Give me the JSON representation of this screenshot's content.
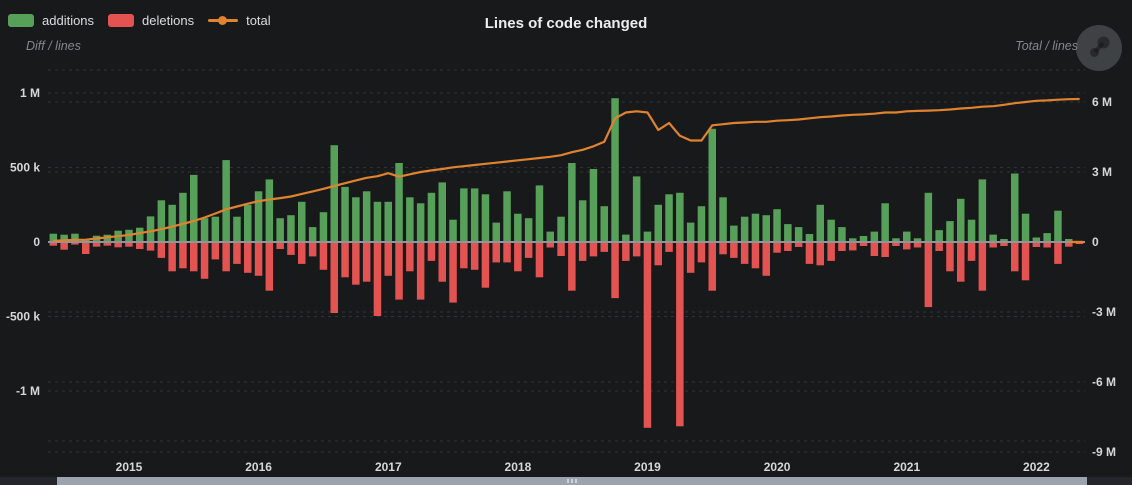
{
  "header": {
    "title": "Lines of code changed",
    "legend": [
      {
        "label": "additions",
        "color": "#57a05a",
        "marker": "box"
      },
      {
        "label": "deletions",
        "color": "#e25352",
        "marker": "box"
      },
      {
        "label": "total",
        "color": "#e0832f",
        "marker": "line-dot"
      }
    ]
  },
  "axes": {
    "left_name": "Diff / lines",
    "right_name": "Total / lines"
  },
  "chart_data": {
    "type": "bar",
    "subtype": "monthly additions/deletions bars with cumulative total line",
    "title": "Lines of code changed",
    "xlabel": "",
    "ylabel_left": "Diff / lines",
    "ylabel_right": "Total / lines",
    "grid": "faint dashed horizontal gridlines",
    "legend_position": "top-left",
    "x_start_month": "2014-06",
    "x_end_month": "2022-05",
    "year_ticks": [
      {
        "label": "2015",
        "index": 7
      },
      {
        "label": "2016",
        "index": 19
      },
      {
        "label": "2017",
        "index": 31
      },
      {
        "label": "2018",
        "index": 43
      },
      {
        "label": "2019",
        "index": 55
      },
      {
        "label": "2020",
        "index": 67
      },
      {
        "label": "2021",
        "index": 79
      },
      {
        "label": "2022",
        "index": 91
      }
    ],
    "left_axis": {
      "name": "Diff / lines",
      "range_k": [
        -1410,
        1160
      ],
      "ticks": [
        {
          "label": "1 M",
          "value_k": 1000
        },
        {
          "label": "500 k",
          "value_k": 500
        },
        {
          "label": "0",
          "value_k": 0
        },
        {
          "label": "-500 k",
          "value_k": -500
        },
        {
          "label": "-1 M",
          "value_k": -1000
        }
      ]
    },
    "right_axis": {
      "name": "Total / lines",
      "range_m": [
        -9.4,
        7.4
      ],
      "ticks": [
        {
          "label": "6 M",
          "value_m": 6
        },
        {
          "label": "3 M",
          "value_m": 3
        },
        {
          "label": "0",
          "value_m": 0
        },
        {
          "label": "-3 M",
          "value_m": -3
        },
        {
          "label": "-6 M",
          "value_m": -6
        },
        {
          "label": "-9 M",
          "value_m": -9
        }
      ]
    },
    "series": [
      {
        "name": "additions",
        "type": "bar",
        "axis": "left",
        "direction": "up",
        "color": "#57a05a",
        "unit": "thousand lines",
        "values": [
          56,
          49,
          56,
          16,
          42,
          49,
          76,
          82,
          96,
          172,
          280,
          250,
          330,
          450,
          160,
          170,
          550,
          170,
          250,
          340,
          420,
          160,
          180,
          270,
          100,
          200,
          650,
          370,
          300,
          340,
          270,
          270,
          530,
          300,
          260,
          330,
          400,
          150,
          360,
          360,
          320,
          130,
          340,
          190,
          160,
          380,
          70,
          170,
          530,
          280,
          490,
          240,
          965,
          50,
          440,
          70,
          250,
          320,
          330,
          130,
          240,
          760,
          300,
          110,
          170,
          190,
          180,
          220,
          120,
          100,
          54,
          250,
          150,
          100,
          25,
          40,
          70,
          260,
          25,
          70,
          25,
          330,
          80,
          140,
          290,
          150,
          420,
          50,
          20,
          460,
          190,
          30,
          60,
          210,
          20,
          5
        ]
      },
      {
        "name": "deletions",
        "type": "bar",
        "axis": "left",
        "direction": "down",
        "color": "#e25352",
        "unit": "thousand lines",
        "values": [
          18,
          45,
          11,
          74,
          25,
          18,
          29,
          25,
          40,
          51,
          100,
          190,
          170,
          190,
          240,
          110,
          190,
          140,
          200,
          220,
          320,
          40,
          80,
          140,
          90,
          180,
          470,
          230,
          280,
          260,
          490,
          220,
          380,
          190,
          380,
          120,
          260,
          400,
          170,
          180,
          300,
          130,
          130,
          190,
          100,
          230,
          30,
          87,
          320,
          120,
          90,
          60,
          370,
          120,
          90,
          1240,
          150,
          60,
          1230,
          200,
          130,
          320,
          76,
          100,
          140,
          170,
          220,
          65,
          54,
          27,
          140,
          150,
          120,
          54,
          50,
          20,
          87,
          94,
          20,
          43,
          30,
          430,
          54,
          190,
          260,
          120,
          320,
          30,
          20,
          190,
          250,
          27,
          30,
          140,
          25,
          5
        ]
      },
      {
        "name": "total",
        "type": "line",
        "axis": "right",
        "color": "#e0832f",
        "unit": "million lines",
        "values": [
          0.05,
          0.07,
          0.09,
          0.1,
          0.15,
          0.2,
          0.25,
          0.3,
          0.38,
          0.46,
          0.55,
          0.66,
          0.78,
          0.9,
          1.05,
          1.22,
          1.4,
          1.52,
          1.64,
          1.75,
          1.82,
          1.88,
          1.95,
          2.06,
          2.17,
          2.28,
          2.4,
          2.52,
          2.64,
          2.75,
          2.82,
          2.95,
          2.8,
          2.9,
          3.0,
          3.07,
          3.13,
          3.2,
          3.25,
          3.3,
          3.35,
          3.4,
          3.45,
          3.5,
          3.55,
          3.6,
          3.65,
          3.72,
          3.85,
          3.95,
          4.1,
          4.3,
          5.3,
          5.55,
          5.6,
          5.55,
          4.8,
          5.1,
          4.55,
          4.35,
          4.35,
          5.0,
          5.05,
          5.1,
          5.12,
          5.15,
          5.15,
          5.2,
          5.22,
          5.25,
          5.3,
          5.35,
          5.38,
          5.42,
          5.45,
          5.47,
          5.5,
          5.55,
          5.55,
          5.6,
          5.62,
          5.63,
          5.65,
          5.68,
          5.72,
          5.75,
          5.8,
          5.82,
          5.88,
          5.95,
          6.0,
          6.05,
          6.07,
          6.1,
          6.12,
          6.13
        ]
      }
    ]
  },
  "scrollbar": {
    "coverage_start": 0.05,
    "coverage_end": 0.96
  },
  "colors": {
    "background": "#18191b",
    "zero_line": "#90959b",
    "grid": "#2f3236",
    "tick_text": "#d5d7d9",
    "axis_name_text": "#84878b",
    "scrollbar_thumb": "#9aa3ae"
  }
}
